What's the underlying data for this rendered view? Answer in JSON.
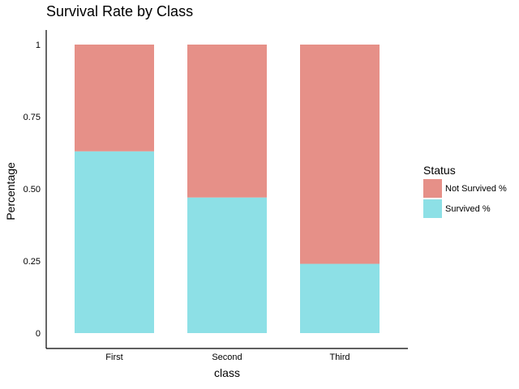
{
  "chart_data": {
    "type": "bar",
    "stacked": true,
    "title": "Survival Rate by Class",
    "xlabel": "class",
    "ylabel": "Percentage",
    "categories": [
      "First",
      "Second",
      "Third"
    ],
    "series": [
      {
        "name": "Survived %",
        "color": "#8DE0E6",
        "values": [
          0.63,
          0.47,
          0.24
        ]
      },
      {
        "name": "Not Survived %",
        "color": "#E69088",
        "values": [
          0.37,
          0.53,
          0.76
        ]
      }
    ],
    "ylim": [
      0,
      1
    ],
    "yticks": [
      {
        "value": 0,
        "label": "0"
      },
      {
        "value": 0.25,
        "label": "0.25"
      },
      {
        "value": 0.5,
        "label": "0.50"
      },
      {
        "value": 0.75,
        "label": "0.75"
      },
      {
        "value": 1,
        "label": "1"
      }
    ],
    "grid": false,
    "legend": {
      "title": "Status",
      "position": "right",
      "entries": [
        "Not Survived %",
        "Survived %"
      ]
    }
  }
}
